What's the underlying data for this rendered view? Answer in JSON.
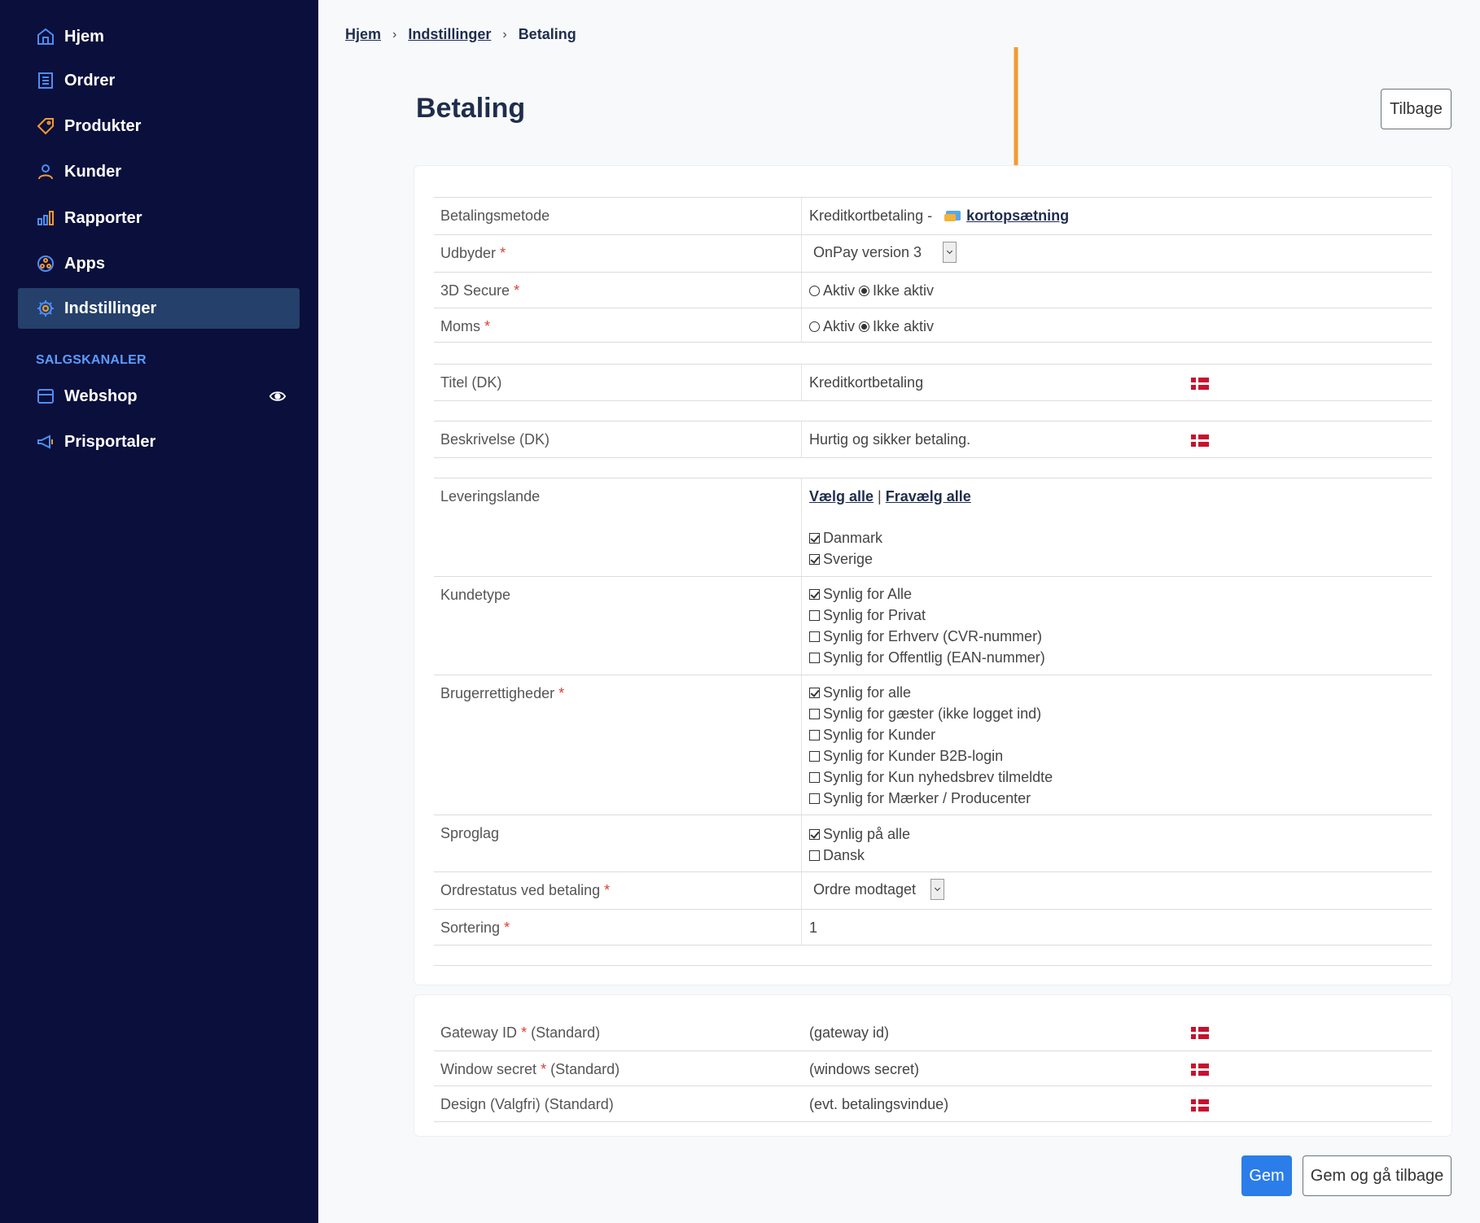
{
  "sidebar": {
    "items": [
      {
        "label": "Hjem",
        "icon": "home-icon"
      },
      {
        "label": "Ordrer",
        "icon": "orders-icon"
      },
      {
        "label": "Produkter",
        "icon": "tag-icon"
      },
      {
        "label": "Kunder",
        "icon": "user-icon"
      },
      {
        "label": "Rapporter",
        "icon": "bar-chart-icon"
      },
      {
        "label": "Apps",
        "icon": "apps-icon"
      },
      {
        "label": "Indstillinger",
        "icon": "gear-icon",
        "active": true
      }
    ],
    "section_label": "SALGSKANALER",
    "channels": [
      {
        "label": "Webshop",
        "icon": "webshop-icon"
      },
      {
        "label": "Prisportaler",
        "icon": "megaphone-icon"
      }
    ]
  },
  "breadcrumb": {
    "home": "Hjem",
    "settings": "Indstillinger",
    "current": "Betaling"
  },
  "page_title": "Betaling",
  "back_button": "Tilbage",
  "form": {
    "payment_method": {
      "label": "Betalingsmetode",
      "value": "Kreditkortbetaling -",
      "link": "kortopsætning"
    },
    "provider": {
      "label": "Udbyder",
      "value": "OnPay version 3"
    },
    "secure3d": {
      "label": "3D Secure",
      "opt_active": "Aktiv",
      "opt_inactive": "Ikke aktiv"
    },
    "vat": {
      "label": "Moms",
      "opt_active": "Aktiv",
      "opt_inactive": "Ikke aktiv"
    },
    "title": {
      "label": "Titel (DK)",
      "value": "Kreditkortbetaling"
    },
    "description": {
      "label": "Beskrivelse (DK)",
      "value": "Hurtig og sikker betaling."
    },
    "countries": {
      "label": "Leveringslande",
      "select_all": "Vælg alle",
      "separator": "|",
      "deselect_all": "Fravælg alle",
      "options": [
        "Danmark",
        "Sverige"
      ]
    },
    "customer_type": {
      "label": "Kundetype",
      "options": [
        "Synlig for Alle",
        "Synlig for Privat",
        "Synlig for Erhverv (CVR-nummer)",
        "Synlig for Offentlig (EAN-nummer)"
      ]
    },
    "user_rights": {
      "label": "Brugerrettigheder",
      "options": [
        "Synlig for alle",
        "Synlig for gæster (ikke logget ind)",
        "Synlig for Kunder",
        "Synlig for Kunder B2B-login",
        "Synlig for Kun nyhedsbrev tilmeldte",
        "Synlig for Mærker / Producenter"
      ]
    },
    "language": {
      "label": "Sproglag",
      "options": [
        "Synlig på alle",
        "Dansk"
      ]
    },
    "order_status": {
      "label": "Ordrestatus ved betaling",
      "value": "Ordre modtaget"
    },
    "sorting": {
      "label": "Sortering",
      "value": "1"
    }
  },
  "gateway": {
    "gateway_id": {
      "label": "Gateway ID",
      "suffix": "(Standard)",
      "value": "(gateway id)"
    },
    "window_secret": {
      "label": "Window secret",
      "suffix": "(Standard)",
      "value": "(windows secret)"
    },
    "design": {
      "label": "Design (Valgfri) (Standard)",
      "value": "(evt. betalingsvindue)"
    }
  },
  "buttons": {
    "save": "Gem",
    "save_back": "Gem og gå tilbage"
  },
  "colors": {
    "sidebar_bg": "#0b0f3b",
    "sidebar_active": "#24406b",
    "accent_blue": "#2b7de9",
    "arrow_orange": "#f39a31",
    "required_red": "#e03c31"
  }
}
